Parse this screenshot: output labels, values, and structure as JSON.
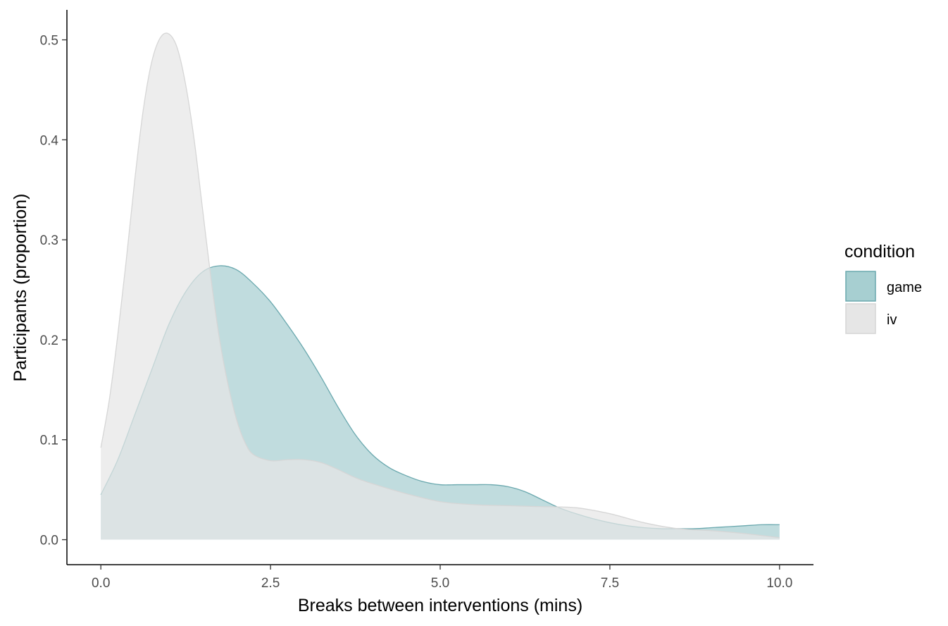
{
  "chart_data": {
    "type": "area",
    "subtype": "density",
    "xlabel": "Breaks between interventions (mins)",
    "ylabel": "Participants (proportion)",
    "xlim": [
      -0.5,
      10.5
    ],
    "ylim": [
      -0.025,
      0.53
    ],
    "x_ticks": [
      {
        "value": 0,
        "label": "0.0"
      },
      {
        "value": 2.5,
        "label": "2.5"
      },
      {
        "value": 5,
        "label": "5.0"
      },
      {
        "value": 7.5,
        "label": "7.5"
      },
      {
        "value": 10,
        "label": "10.0"
      }
    ],
    "y_ticks": [
      {
        "value": 0,
        "label": "0.0"
      },
      {
        "value": 0.1,
        "label": "0.1"
      },
      {
        "value": 0.2,
        "label": "0.2"
      },
      {
        "value": 0.3,
        "label": "0.3"
      },
      {
        "value": 0.4,
        "label": "0.4"
      },
      {
        "value": 0.5,
        "label": "0.5"
      }
    ],
    "grid": false,
    "legend": {
      "title": "condition",
      "position": "right"
    },
    "series": [
      {
        "name": "game",
        "fill": "#a7cfd1",
        "stroke": "#6aa8ae",
        "x": [
          0,
          0.25,
          0.5,
          0.75,
          1.0,
          1.25,
          1.5,
          1.75,
          2.0,
          2.25,
          2.5,
          2.75,
          3.0,
          3.25,
          3.5,
          3.75,
          4.0,
          4.25,
          4.5,
          4.75,
          5.0,
          5.25,
          5.5,
          5.75,
          6.0,
          6.25,
          6.5,
          6.75,
          7.0,
          7.25,
          7.5,
          7.75,
          8.0,
          8.25,
          8.5,
          8.75,
          9.0,
          9.25,
          9.5,
          9.75,
          10.0
        ],
        "y": [
          0.045,
          0.08,
          0.125,
          0.17,
          0.215,
          0.248,
          0.268,
          0.274,
          0.27,
          0.256,
          0.238,
          0.215,
          0.19,
          0.162,
          0.132,
          0.105,
          0.085,
          0.072,
          0.064,
          0.058,
          0.055,
          0.055,
          0.055,
          0.055,
          0.053,
          0.048,
          0.04,
          0.032,
          0.026,
          0.021,
          0.017,
          0.014,
          0.012,
          0.011,
          0.011,
          0.011,
          0.012,
          0.013,
          0.014,
          0.015,
          0.015
        ]
      },
      {
        "name": "iv",
        "fill": "#e6e6e6",
        "stroke": "#d6d6d6",
        "x": [
          0,
          0.125,
          0.25,
          0.375,
          0.5,
          0.625,
          0.75,
          0.875,
          1.0,
          1.125,
          1.25,
          1.375,
          1.5,
          1.625,
          1.75,
          1.875,
          2.0,
          2.125,
          2.25,
          2.5,
          2.75,
          3.0,
          3.25,
          3.5,
          3.75,
          4.0,
          4.5,
          5.0,
          5.5,
          6.0,
          6.5,
          7.0,
          7.5,
          8.0,
          8.5,
          9.0,
          9.5,
          10.0
        ],
        "y": [
          0.092,
          0.14,
          0.205,
          0.28,
          0.36,
          0.43,
          0.478,
          0.502,
          0.506,
          0.492,
          0.455,
          0.4,
          0.33,
          0.26,
          0.2,
          0.155,
          0.12,
          0.097,
          0.085,
          0.079,
          0.08,
          0.08,
          0.077,
          0.07,
          0.062,
          0.056,
          0.046,
          0.038,
          0.035,
          0.034,
          0.033,
          0.032,
          0.026,
          0.017,
          0.011,
          0.009,
          0.006,
          0.002
        ]
      }
    ]
  }
}
